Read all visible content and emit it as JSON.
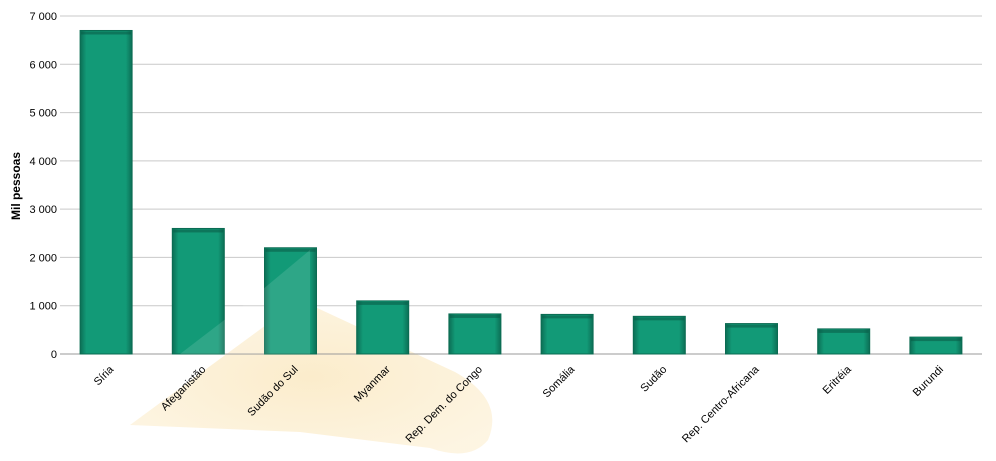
{
  "chart_data": {
    "type": "bar",
    "title": "",
    "xlabel": "",
    "ylabel": "Mil pessoas",
    "categories": [
      "Síria",
      "Afeganistão",
      "Sudão do Sul",
      "Myanmar",
      "Rep. Dem. do Congo",
      "Somália",
      "Sudão",
      "Rep. Centro-Africana",
      "Eritréia",
      "Burundi"
    ],
    "values": [
      6700,
      2600,
      2200,
      1100,
      830,
      820,
      780,
      630,
      520,
      350
    ],
    "ylim": [
      0,
      7000
    ],
    "yticks": [
      0,
      1000,
      2000,
      3000,
      4000,
      5000,
      6000,
      7000
    ],
    "ytick_labels": [
      "0",
      "1 000",
      "2 000",
      "3 000",
      "4 000",
      "5 000",
      "6 000",
      "7 000"
    ],
    "grid": true,
    "legend": "none",
    "colors": {
      "bar_fill": "#129a77",
      "bar_edge": "#0b6b52",
      "watermark": "#fbeccb"
    }
  }
}
